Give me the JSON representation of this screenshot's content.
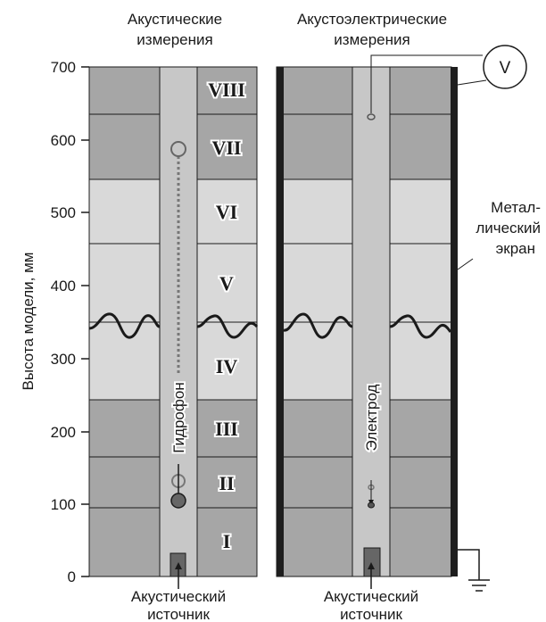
{
  "titles": {
    "left": [
      "Акустические",
      "измерения"
    ],
    "right": [
      "Акустоэлектрические",
      "измерения"
    ]
  },
  "y_axis": {
    "label": "Высота модели, мм",
    "ticks": [
      "0",
      "100",
      "200",
      "300",
      "400",
      "500",
      "600",
      "700"
    ]
  },
  "layers": [
    "I",
    "II",
    "III",
    "IV",
    "V",
    "VI",
    "VII",
    "VIII"
  ],
  "layer_shades": [
    "dark",
    "dark",
    "dark",
    "light",
    "light",
    "light",
    "dark",
    "dark"
  ],
  "layer_boundaries_mm": [
    0,
    95,
    165,
    240,
    455,
    545,
    635,
    700
  ],
  "labels": {
    "hydrophone": "Гидрофон",
    "electrode": "Электрод",
    "voltmeter": "V",
    "screen": [
      "Метал-",
      "лический",
      "экран"
    ],
    "source_left": [
      "Акустический",
      "источник"
    ],
    "source_right": [
      "Акустический",
      "источник"
    ]
  },
  "colors": {
    "dark_layer": "#a6a6a6",
    "light_layer": "#d9d9d9",
    "borehole": "#c7c7c7",
    "screen": "#1e1e1e"
  }
}
